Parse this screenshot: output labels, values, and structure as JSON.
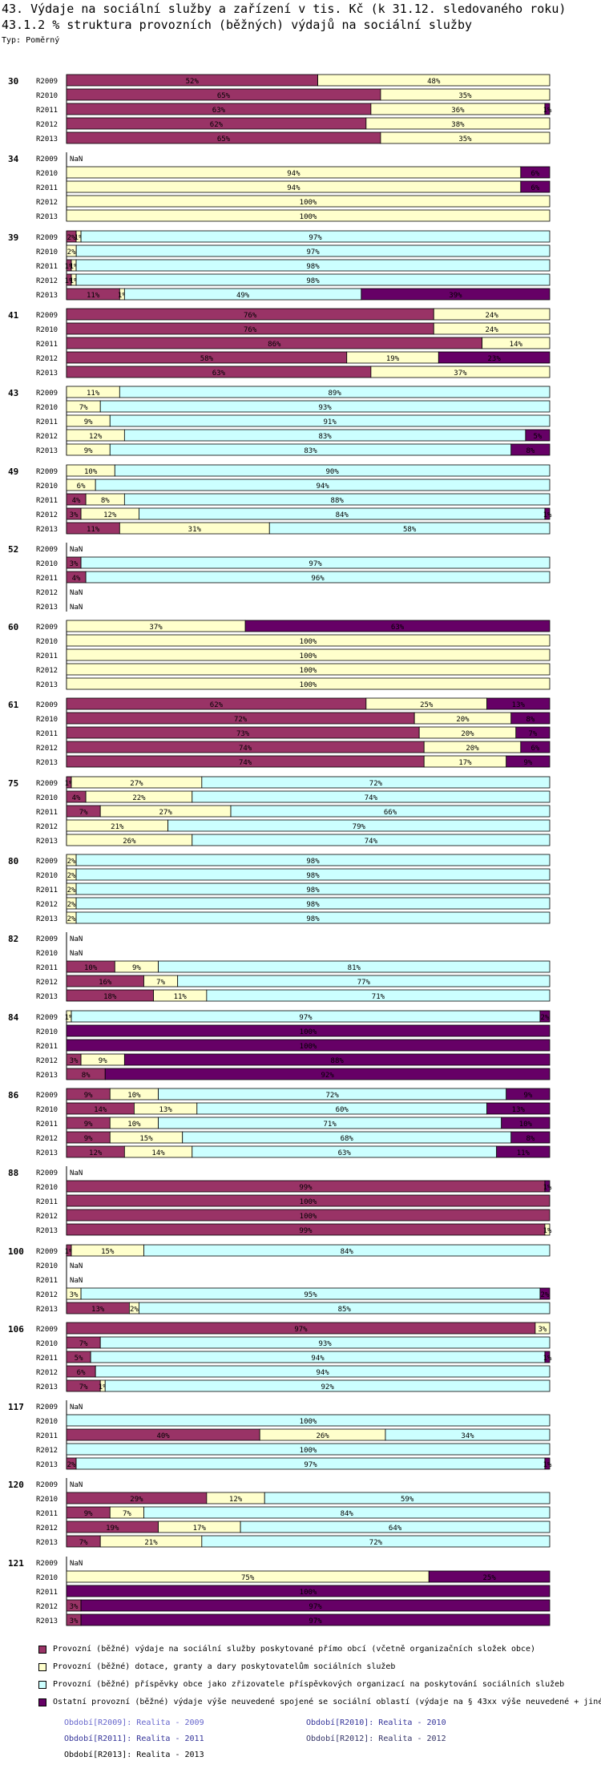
{
  "header": {
    "title": "43. Výdaje na sociální služby a zařízení v tis. Kč (k 31.12. sledovaného roku)",
    "subtitle": "43.1.2 % struktura provozních (běžných) výdajů na sociální služby",
    "typ": "Typ: Poměrný"
  },
  "chart_data": {
    "type": "bar",
    "orientation": "horizontal",
    "stacked": true,
    "scale": "percent",
    "colors": [
      "#993366",
      "#ffffcc",
      "#ccffff",
      "#660066"
    ],
    "years": [
      "R2009",
      "R2010",
      "R2011",
      "R2012",
      "R2013"
    ],
    "series": [
      {
        "name": "Provozní (běžné) výdaje na sociální služby poskytované přímo obcí (včetně organizačních složek obce)"
      },
      {
        "name": "Provozní (běžné) dotace, granty a dary poskytovatelům sociálních služeb"
      },
      {
        "name": "Provozní (běžné) příspěvky obce jako zřizovatele příspěvkových organizací na poskytování sociálních služeb"
      },
      {
        "name": "Ostatní provozní (běžné) výdaje výše neuvedené spojené se sociální oblastí (výdaje na § 43xx výše neuvedené + jiné)"
      }
    ],
    "groups": [
      {
        "label": "30",
        "rows": [
          [
            52,
            48,
            0,
            0
          ],
          [
            65,
            35,
            0,
            0
          ],
          [
            63,
            36,
            0,
            1
          ],
          [
            62,
            38,
            0,
            0
          ],
          [
            65,
            35,
            0,
            0
          ]
        ]
      },
      {
        "label": "34",
        "rows": [
          null,
          [
            0,
            94,
            0,
            6
          ],
          [
            0,
            94,
            0,
            6
          ],
          [
            0,
            100,
            0,
            0
          ],
          [
            0,
            100,
            0,
            0
          ]
        ]
      },
      {
        "label": "39",
        "rows": [
          [
            2,
            1,
            97,
            0
          ],
          [
            0,
            2,
            97,
            0
          ],
          [
            1,
            1,
            98,
            0
          ],
          [
            1,
            1,
            98,
            0
          ],
          [
            11,
            1,
            49,
            39
          ]
        ]
      },
      {
        "label": "41",
        "rows": [
          [
            76,
            24,
            0,
            0
          ],
          [
            76,
            24,
            0,
            0
          ],
          [
            86,
            14,
            0,
            0
          ],
          [
            58,
            19,
            0,
            23
          ],
          [
            63,
            37,
            0,
            0
          ]
        ]
      },
      {
        "label": "43",
        "rows": [
          [
            0,
            11,
            89,
            0
          ],
          [
            0,
            7,
            93,
            0
          ],
          [
            0,
            9,
            91,
            0
          ],
          [
            0,
            12,
            83,
            5
          ],
          [
            0,
            9,
            83,
            8
          ]
        ]
      },
      {
        "label": "49",
        "rows": [
          [
            0,
            10,
            90,
            0
          ],
          [
            0,
            6,
            94,
            0
          ],
          [
            4,
            8,
            88,
            0
          ],
          [
            3,
            12,
            84,
            1
          ],
          [
            11,
            31,
            58,
            0
          ]
        ]
      },
      {
        "label": "52",
        "rows": [
          null,
          [
            3,
            0,
            97,
            0
          ],
          [
            4,
            0,
            96,
            0
          ],
          null,
          null
        ]
      },
      {
        "label": "60",
        "rows": [
          [
            0,
            37,
            0,
            63
          ],
          [
            0,
            100,
            0,
            0
          ],
          [
            0,
            100,
            0,
            0
          ],
          [
            0,
            100,
            0,
            0
          ],
          [
            0,
            100,
            0,
            0
          ]
        ]
      },
      {
        "label": "61",
        "rows": [
          [
            62,
            25,
            0,
            13
          ],
          [
            72,
            20,
            0,
            8
          ],
          [
            73,
            20,
            0,
            7
          ],
          [
            74,
            20,
            0,
            6
          ],
          [
            74,
            17,
            0,
            9
          ]
        ]
      },
      {
        "label": "75",
        "rows": [
          [
            1,
            27,
            72,
            0
          ],
          [
            4,
            22,
            74,
            0
          ],
          [
            7,
            27,
            66,
            0
          ],
          [
            0,
            21,
            79,
            0
          ],
          [
            0,
            26,
            74,
            0
          ]
        ]
      },
      {
        "label": "80",
        "rows": [
          [
            0,
            2,
            98,
            0
          ],
          [
            0,
            2,
            98,
            0
          ],
          [
            0,
            2,
            98,
            0
          ],
          [
            0,
            2,
            98,
            0
          ],
          [
            0,
            2,
            98,
            0
          ]
        ]
      },
      {
        "label": "82",
        "rows": [
          null,
          null,
          [
            10,
            9,
            81,
            0
          ],
          [
            16,
            7,
            77,
            0
          ],
          [
            18,
            11,
            71,
            0
          ]
        ]
      },
      {
        "label": "84",
        "rows": [
          [
            0,
            1,
            97,
            2
          ],
          [
            0,
            0,
            0,
            100
          ],
          [
            0,
            0,
            0,
            100
          ],
          [
            3,
            9,
            0,
            88
          ],
          [
            8,
            0,
            0,
            92
          ]
        ]
      },
      {
        "label": "86",
        "rows": [
          [
            9,
            10,
            72,
            9
          ],
          [
            14,
            13,
            60,
            13
          ],
          [
            9,
            10,
            71,
            10
          ],
          [
            9,
            15,
            68,
            8
          ],
          [
            12,
            14,
            63,
            11
          ]
        ]
      },
      {
        "label": "88",
        "rows": [
          null,
          [
            99,
            0,
            0,
            1
          ],
          [
            100,
            0,
            0,
            0
          ],
          [
            100,
            0,
            0,
            0
          ],
          [
            99,
            1,
            0,
            0
          ]
        ]
      },
      {
        "label": "100",
        "rows": [
          [
            1,
            15,
            84,
            0
          ],
          null,
          null,
          [
            0,
            3,
            95,
            2
          ],
          [
            13,
            2,
            85,
            0
          ]
        ]
      },
      {
        "label": "106",
        "rows": [
          [
            97,
            3,
            0,
            0
          ],
          [
            7,
            0,
            93,
            0
          ],
          [
            5,
            0,
            94,
            1
          ],
          [
            6,
            0,
            94,
            0
          ],
          [
            7,
            1,
            92,
            0
          ]
        ]
      },
      {
        "label": "117",
        "rows": [
          null,
          [
            0,
            0,
            100,
            0
          ],
          [
            40,
            26,
            34,
            0
          ],
          [
            0,
            0,
            100,
            0
          ],
          [
            2,
            0,
            97,
            1
          ]
        ]
      },
      {
        "label": "120",
        "rows": [
          null,
          [
            29,
            12,
            59,
            0
          ],
          [
            9,
            7,
            84,
            0
          ],
          [
            19,
            17,
            64,
            0
          ],
          [
            7,
            21,
            72,
            0
          ]
        ]
      },
      {
        "label": "121",
        "rows": [
          null,
          [
            0,
            75,
            0,
            25
          ],
          [
            0,
            0,
            0,
            100
          ],
          [
            3,
            0,
            0,
            97
          ],
          [
            3,
            0,
            0,
            97
          ]
        ]
      }
    ],
    "nan_label": "NaN"
  },
  "legend": {
    "items": [
      {
        "label": "Provozní (běžné) výdaje na sociální služby poskytované přímo obcí (včetně organizačních složek obce)",
        "color": "#993366"
      },
      {
        "label": "Provozní (běžné) dotace, granty a dary poskytovatelům sociálních služeb",
        "color": "#ffffcc"
      },
      {
        "label": "Provozní (běžné) příspěvky obce jako zřizovatele příspěvkových organizací na poskytování sociálních služeb",
        "color": "#ccffff"
      },
      {
        "label": "Ostatní provozní (běžné) výdaje výše neuvedené spojené se sociální oblastí (výdaje na § 43xx výše neuvedené + jiné)",
        "color": "#660066"
      }
    ]
  },
  "periods": [
    {
      "text": "Období[R2009]: Realita - 2009",
      "color": "#6666cc"
    },
    {
      "text": "Období[R2010]: Realita - 2010",
      "color": "#333399"
    },
    {
      "text": "Období[R2011]: Realita - 2011",
      "color": "#333399"
    },
    {
      "text": "Období[R2012]: Realita - 2012",
      "color": "#333366"
    },
    {
      "text": "Období[R2013]: Realita - 2013",
      "color": "#000000"
    }
  ]
}
